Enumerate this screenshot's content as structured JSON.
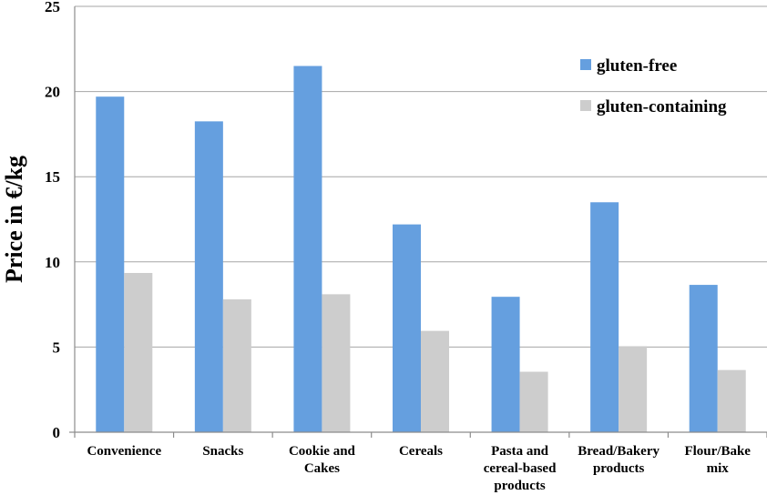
{
  "chart_data": {
    "type": "bar",
    "ylabel": "Price in €/kg",
    "xlabel": "",
    "ylim": [
      0,
      25
    ],
    "yticks": [
      0,
      5,
      10,
      15,
      20,
      25
    ],
    "grid": true,
    "legend_position": "top-right",
    "categories": [
      [
        "Convenience"
      ],
      [
        "Snacks"
      ],
      [
        "Cookie and",
        "Cakes"
      ],
      [
        "Cereals"
      ],
      [
        "Pasta and",
        "cereal-based",
        "products"
      ],
      [
        "Bread/Bakery",
        "products"
      ],
      [
        "Flour/Bake",
        "mix"
      ]
    ],
    "series": [
      {
        "name": "gluten-free",
        "color": "#659fdf",
        "values": [
          19.7,
          18.25,
          21.5,
          12.2,
          7.95,
          13.5,
          8.65
        ]
      },
      {
        "name": "gluten-containing",
        "color": "#cdcdcd",
        "values": [
          9.35,
          7.8,
          8.1,
          5.95,
          3.55,
          5.05,
          3.65
        ]
      }
    ]
  }
}
